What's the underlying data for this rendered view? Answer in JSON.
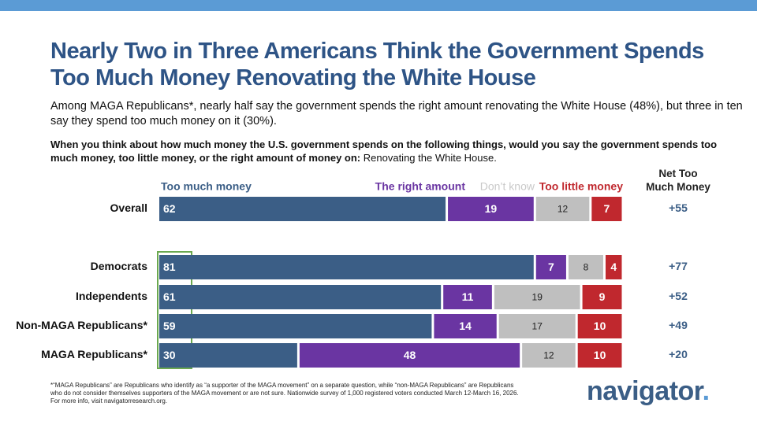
{
  "header": {
    "title": "Nearly Two in Three Americans Think the Government Spends Too Much Money Renovating the White House",
    "subtitle": "Among MAGA Republicans*, nearly half say the government spends the right amount renovating the White House (48%), but three in ten say they spend too much money on it (30%).",
    "question": "When you think about how much money the U.S. government spends on the following things, would you say the government spends too much money, too little money, or the right amount of money on:",
    "question_item": "Renovating the White House."
  },
  "chart_data": {
    "type": "stacked_bar",
    "orientation": "horizontal",
    "categories": [
      "Overall",
      "Democrats",
      "Independents",
      "Non-MAGA Republicans*",
      "MAGA Republicans*"
    ],
    "xlim": [
      0,
      100
    ],
    "series": [
      {
        "name": "Too much money",
        "color": "#3b5e86",
        "values": [
          62,
          81,
          61,
          59,
          30
        ]
      },
      {
        "name": "The right amount",
        "color": "#6a35a2",
        "values": [
          19,
          7,
          11,
          14,
          48
        ]
      },
      {
        "name": "Don’t know",
        "color": "#bfbfbf",
        "values": [
          12,
          8,
          19,
          17,
          12
        ]
      },
      {
        "name": "Too little money",
        "color": "#c0282e",
        "values": [
          7,
          4,
          9,
          10,
          10
        ]
      }
    ],
    "net": {
      "title": "Net Too Much Money",
      "values": [
        55,
        77,
        52,
        49,
        20
      ],
      "value_labels": [
        "+55",
        "+77",
        "+52",
        "+49",
        "+20"
      ]
    }
  },
  "footer": {
    "note": "*“MAGA Republicans” are Republicans who identify as “a supporter of the MAGA movement” on a separate question, while “non-MAGA Republicans” are Republicans who do not consider themselves supporters of the MAGA movement or are not sure. Nationwide survey of 1,000 registered voters conducted March 12-March 16, 2026. For more info, visit navigatorresearch.org.",
    "logo": "navigator"
  }
}
